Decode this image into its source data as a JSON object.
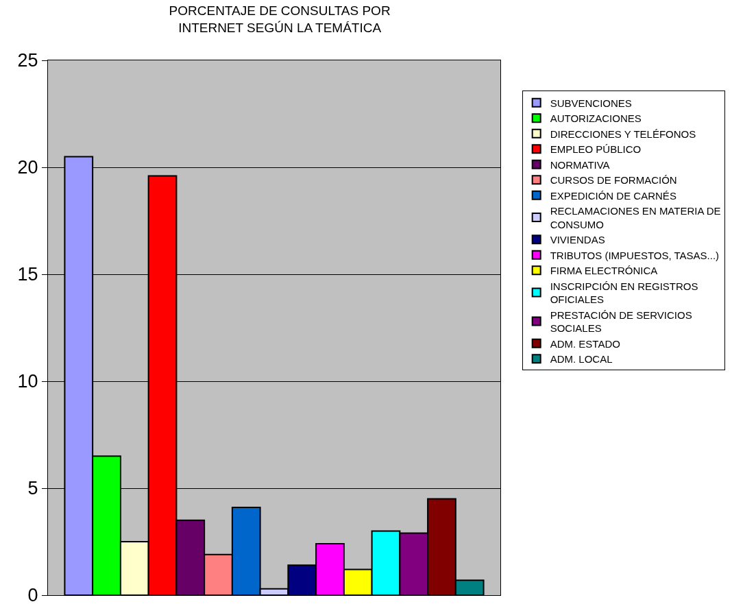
{
  "chart_data": {
    "type": "bar",
    "title": "PORCENTAJE DE CONSULTAS POR INTERNET SEGÚN LA TEMÁTICA",
    "categories": [
      null
    ],
    "ylim": [
      0,
      25
    ],
    "yticks": [
      0,
      5,
      10,
      15,
      20,
      25
    ],
    "grid": "y",
    "legend": "right",
    "series": [
      {
        "name": "SUBVENCIONES",
        "color": "#9999ff",
        "values": [
          20.5
        ]
      },
      {
        "name": "AUTORIZACIONES",
        "color": "#00ff00",
        "values": [
          6.5
        ]
      },
      {
        "name": "DIRECCIONES Y TELÉFONOS",
        "color": "#ffffcc",
        "values": [
          2.5
        ]
      },
      {
        "name": "EMPLEO PÚBLICO",
        "color": "#ff0000",
        "values": [
          19.6
        ]
      },
      {
        "name": "NORMATIVA",
        "color": "#660066",
        "values": [
          3.5
        ]
      },
      {
        "name": "CURSOS DE FORMACIÓN",
        "color": "#ff8080",
        "values": [
          1.9
        ]
      },
      {
        "name": "EXPEDICIÓN DE CARNÉS",
        "color": "#0066cc",
        "values": [
          4.1
        ]
      },
      {
        "name": "RECLAMACIONES EN MATERIA DE CONSUMO",
        "color": "#ccccff",
        "values": [
          0.3
        ]
      },
      {
        "name": "VIVIENDAS",
        "color": "#000080",
        "values": [
          1.4
        ]
      },
      {
        "name": "TRIBUTOS (IMPUESTOS, TASAS...)",
        "color": "#ff00ff",
        "values": [
          2.4
        ]
      },
      {
        "name": "FIRMA ELECTRÓNICA",
        "color": "#ffff00",
        "values": [
          1.2
        ]
      },
      {
        "name": "INSCRIPCIÓN EN REGISTROS OFICIALES",
        "color": "#00ffff",
        "values": [
          3.0
        ]
      },
      {
        "name": "PRESTACIÓN DE SERVICIOS SOCIALES",
        "color": "#800080",
        "values": [
          2.9
        ]
      },
      {
        "name": "ADM. ESTADO",
        "color": "#800000",
        "values": [
          4.5
        ]
      },
      {
        "name": "ADM. LOCAL",
        "color": "#008080",
        "values": [
          0.7
        ]
      }
    ]
  }
}
